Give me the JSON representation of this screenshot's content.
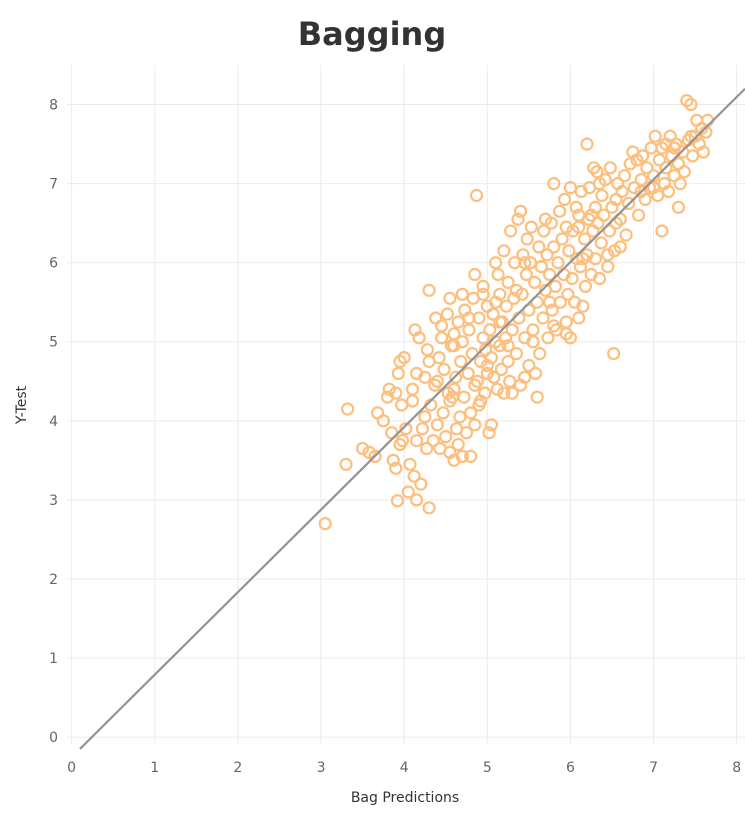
{
  "chart_data": {
    "type": "scatter",
    "title": "Bagging",
    "xlabel": "Bag Predictions",
    "ylabel": "Y-Test",
    "xlim": [
      -0.2,
      8.1
    ],
    "ylim": [
      -0.1,
      8.5
    ],
    "x_ticks": [
      "0",
      "1",
      "2",
      "3",
      "4",
      "5",
      "6",
      "7",
      "8"
    ],
    "y_ticks": [
      "0",
      "1",
      "2",
      "3",
      "4",
      "5",
      "6",
      "7",
      "8"
    ],
    "grid": true,
    "legend": "none",
    "marker_color": "#fdbf7e",
    "line_color": "#939393",
    "reference_line": {
      "x": [
        0.1,
        8.1
      ],
      "y": [
        -0.15,
        8.2
      ]
    },
    "points": [
      [
        3.05,
        2.7
      ],
      [
        3.3,
        3.45
      ],
      [
        3.32,
        4.15
      ],
      [
        3.5,
        3.65
      ],
      [
        3.58,
        3.6
      ],
      [
        3.65,
        3.55
      ],
      [
        3.68,
        4.1
      ],
      [
        3.75,
        4.0
      ],
      [
        3.8,
        4.3
      ],
      [
        3.82,
        4.4
      ],
      [
        3.85,
        3.85
      ],
      [
        3.87,
        3.5
      ],
      [
        3.9,
        3.4
      ],
      [
        3.92,
        2.99
      ],
      [
        3.93,
        4.6
      ],
      [
        3.95,
        4.75
      ],
      [
        3.97,
        4.2
      ],
      [
        3.98,
        3.75
      ],
      [
        4.0,
        4.8
      ],
      [
        4.02,
        3.9
      ],
      [
        4.05,
        3.1
      ],
      [
        4.07,
        3.45
      ],
      [
        4.1,
        4.25
      ],
      [
        4.12,
        3.3
      ],
      [
        4.13,
        5.15
      ],
      [
        4.15,
        3.0
      ],
      [
        4.15,
        4.6
      ],
      [
        4.18,
        5.05
      ],
      [
        4.2,
        3.2
      ],
      [
        4.22,
        3.9
      ],
      [
        4.25,
        4.55
      ],
      [
        4.27,
        3.65
      ],
      [
        4.28,
        4.9
      ],
      [
        4.3,
        2.9
      ],
      [
        4.3,
        5.65
      ],
      [
        4.32,
        4.2
      ],
      [
        4.35,
        3.75
      ],
      [
        4.37,
        4.45
      ],
      [
        4.38,
        5.3
      ],
      [
        4.4,
        3.95
      ],
      [
        4.42,
        4.8
      ],
      [
        4.43,
        3.65
      ],
      [
        4.45,
        5.2
      ],
      [
        4.47,
        4.1
      ],
      [
        4.48,
        4.65
      ],
      [
        4.5,
        3.8
      ],
      [
        4.52,
        5.35
      ],
      [
        4.53,
        4.35
      ],
      [
        4.55,
        3.6
      ],
      [
        4.55,
        5.55
      ],
      [
        4.57,
        4.95
      ],
      [
        4.58,
        4.3
      ],
      [
        4.6,
        3.5
      ],
      [
        4.6,
        5.1
      ],
      [
        4.62,
        4.55
      ],
      [
        4.63,
        3.9
      ],
      [
        4.65,
        5.25
      ],
      [
        4.67,
        4.05
      ],
      [
        4.68,
        4.75
      ],
      [
        4.7,
        3.55
      ],
      [
        4.7,
        5.0
      ],
      [
        4.72,
        4.3
      ],
      [
        4.73,
        5.4
      ],
      [
        4.75,
        3.85
      ],
      [
        4.77,
        4.6
      ],
      [
        4.78,
        5.15
      ],
      [
        4.8,
        3.55
      ],
      [
        4.8,
        4.1
      ],
      [
        4.82,
        4.85
      ],
      [
        4.83,
        5.55
      ],
      [
        4.85,
        3.95
      ],
      [
        4.85,
        5.85
      ],
      [
        4.87,
        6.85
      ],
      [
        4.88,
        4.5
      ],
      [
        4.9,
        5.3
      ],
      [
        4.9,
        4.2
      ],
      [
        4.92,
        4.75
      ],
      [
        4.95,
        5.05
      ],
      [
        4.95,
        5.6
      ],
      [
        4.97,
        4.35
      ],
      [
        4.98,
        4.9
      ],
      [
        5.0,
        5.45
      ],
      [
        5.0,
        4.6
      ],
      [
        5.02,
        3.85
      ],
      [
        5.03,
        5.15
      ],
      [
        5.05,
        3.95
      ],
      [
        5.05,
        4.8
      ],
      [
        5.07,
        5.35
      ],
      [
        5.08,
        4.55
      ],
      [
        5.1,
        5.0
      ],
      [
        5.1,
        5.5
      ],
      [
        5.12,
        4.4
      ],
      [
        5.13,
        5.85
      ],
      [
        5.15,
        4.95
      ],
      [
        5.15,
        5.6
      ],
      [
        5.17,
        4.65
      ],
      [
        5.18,
        5.25
      ],
      [
        5.2,
        4.35
      ],
      [
        5.2,
        6.15
      ],
      [
        5.22,
        5.05
      ],
      [
        5.23,
        5.45
      ],
      [
        5.25,
        4.75
      ],
      [
        5.25,
        5.75
      ],
      [
        5.27,
        4.5
      ],
      [
        5.28,
        6.4
      ],
      [
        5.3,
        4.35
      ],
      [
        5.3,
        5.15
      ],
      [
        5.32,
        5.55
      ],
      [
        5.33,
        6.0
      ],
      [
        5.35,
        4.85
      ],
      [
        5.37,
        6.55
      ],
      [
        5.38,
        5.3
      ],
      [
        5.4,
        4.45
      ],
      [
        5.4,
        6.65
      ],
      [
        5.42,
        5.6
      ],
      [
        5.43,
        6.1
      ],
      [
        5.45,
        5.05
      ],
      [
        5.47,
        5.85
      ],
      [
        5.48,
        6.3
      ],
      [
        5.5,
        4.7
      ],
      [
        5.5,
        5.4
      ],
      [
        5.52,
        6.0
      ],
      [
        5.53,
        6.45
      ],
      [
        5.55,
        5.15
      ],
      [
        5.57,
        5.75
      ],
      [
        5.58,
        4.6
      ],
      [
        5.6,
        4.3
      ],
      [
        5.6,
        5.5
      ],
      [
        5.62,
        6.2
      ],
      [
        5.63,
        4.85
      ],
      [
        5.65,
        5.95
      ],
      [
        5.67,
        5.3
      ],
      [
        5.68,
        6.4
      ],
      [
        5.7,
        5.65
      ],
      [
        5.72,
        6.1
      ],
      [
        5.73,
        5.05
      ],
      [
        5.75,
        5.85
      ],
      [
        5.77,
        6.5
      ],
      [
        5.78,
        5.4
      ],
      [
        5.8,
        7.0
      ],
      [
        5.8,
        6.2
      ],
      [
        5.82,
        5.7
      ],
      [
        5.83,
        5.15
      ],
      [
        5.85,
        6.0
      ],
      [
        5.87,
        6.65
      ],
      [
        5.88,
        5.5
      ],
      [
        5.9,
        6.3
      ],
      [
        5.92,
        5.85
      ],
      [
        5.93,
        6.8
      ],
      [
        5.95,
        5.1
      ],
      [
        5.95,
        6.45
      ],
      [
        5.97,
        5.6
      ],
      [
        5.98,
        6.15
      ],
      [
        6.0,
        6.95
      ],
      [
        6.02,
        5.8
      ],
      [
        6.03,
        6.4
      ],
      [
        6.05,
        5.5
      ],
      [
        6.07,
        6.7
      ],
      [
        6.08,
        6.05
      ],
      [
        6.1,
        5.3
      ],
      [
        6.1,
        6.6
      ],
      [
        6.12,
        5.95
      ],
      [
        6.13,
        6.9
      ],
      [
        6.15,
        5.45
      ],
      [
        6.17,
        6.3
      ],
      [
        6.18,
        5.7
      ],
      [
        6.2,
        7.5
      ],
      [
        6.2,
        6.1
      ],
      [
        6.22,
        6.55
      ],
      [
        6.23,
        6.95
      ],
      [
        6.25,
        5.85
      ],
      [
        6.27,
        6.4
      ],
      [
        6.28,
        7.2
      ],
      [
        6.3,
        6.7
      ],
      [
        6.3,
        6.05
      ],
      [
        6.32,
        7.15
      ],
      [
        6.33,
        6.5
      ],
      [
        6.35,
        5.8
      ],
      [
        6.37,
        6.25
      ],
      [
        6.38,
        6.85
      ],
      [
        6.4,
        6.6
      ],
      [
        6.42,
        7.05
      ],
      [
        6.45,
        5.95
      ],
      [
        6.47,
        6.4
      ],
      [
        6.48,
        7.2
      ],
      [
        6.5,
        6.7
      ],
      [
        6.52,
        4.85
      ],
      [
        6.53,
        6.15
      ],
      [
        6.55,
        6.8
      ],
      [
        6.57,
        7.0
      ],
      [
        6.6,
        6.55
      ],
      [
        6.62,
        6.9
      ],
      [
        6.65,
        7.1
      ],
      [
        6.67,
        6.35
      ],
      [
        6.7,
        6.75
      ],
      [
        6.72,
        7.25
      ],
      [
        6.75,
        7.4
      ],
      [
        6.77,
        6.95
      ],
      [
        6.8,
        7.3
      ],
      [
        6.82,
        6.6
      ],
      [
        6.85,
        7.05
      ],
      [
        6.87,
        7.35
      ],
      [
        6.9,
        6.8
      ],
      [
        6.92,
        7.2
      ],
      [
        6.95,
        6.95
      ],
      [
        6.97,
        7.45
      ],
      [
        7.0,
        7.1
      ],
      [
        7.02,
        7.6
      ],
      [
        7.05,
        6.85
      ],
      [
        7.07,
        7.3
      ],
      [
        7.1,
        6.4
      ],
      [
        7.1,
        7.45
      ],
      [
        7.13,
        7.0
      ],
      [
        7.15,
        7.2
      ],
      [
        7.18,
        6.9
      ],
      [
        7.2,
        7.6
      ],
      [
        7.22,
        7.35
      ],
      [
        7.25,
        7.1
      ],
      [
        7.27,
        7.5
      ],
      [
        7.3,
        6.7
      ],
      [
        7.3,
        7.25
      ],
      [
        7.32,
        7.0
      ],
      [
        7.35,
        7.4
      ],
      [
        7.37,
        7.15
      ],
      [
        7.4,
        8.05
      ],
      [
        7.42,
        7.55
      ],
      [
        7.45,
        8.0
      ],
      [
        7.47,
        7.35
      ],
      [
        7.5,
        7.6
      ],
      [
        7.52,
        7.8
      ],
      [
        7.55,
        7.5
      ],
      [
        7.58,
        7.7
      ],
      [
        7.6,
        7.4
      ],
      [
        7.63,
        7.65
      ],
      [
        7.65,
        7.8
      ],
      [
        4.6,
        4.95
      ],
      [
        4.4,
        4.5
      ],
      [
        4.25,
        4.05
      ],
      [
        4.95,
        5.7
      ],
      [
        5.55,
        5.0
      ],
      [
        5.8,
        5.2
      ],
      [
        6.0,
        5.05
      ],
      [
        5.45,
        6.0
      ],
      [
        6.6,
        6.2
      ],
      [
        4.7,
        5.6
      ],
      [
        4.55,
        4.25
      ],
      [
        4.85,
        4.45
      ],
      [
        5.15,
        5.25
      ],
      [
        3.95,
        3.7
      ],
      [
        4.15,
        3.75
      ],
      [
        4.65,
        3.7
      ],
      [
        5.0,
        4.7
      ],
      [
        5.35,
        5.65
      ],
      [
        5.65,
        5.95
      ],
      [
        6.25,
        6.6
      ],
      [
        6.45,
        6.1
      ],
      [
        5.95,
        5.25
      ],
      [
        4.1,
        4.4
      ],
      [
        4.45,
        5.05
      ],
      [
        4.78,
        5.3
      ],
      [
        5.25,
        4.95
      ],
      [
        5.7,
        6.55
      ],
      [
        6.1,
        6.45
      ],
      [
        6.35,
        7.0
      ],
      [
        7.15,
        7.5
      ],
      [
        7.0,
        6.95
      ],
      [
        3.9,
        4.35
      ],
      [
        4.3,
        4.75
      ],
      [
        4.6,
        4.4
      ],
      [
        4.92,
        4.25
      ],
      [
        5.45,
        4.55
      ],
      [
        5.1,
        6.0
      ],
      [
        5.75,
        5.5
      ],
      [
        6.15,
        6.05
      ],
      [
        6.55,
        6.5
      ],
      [
        6.85,
        6.9
      ],
      [
        7.25,
        7.45
      ],
      [
        7.45,
        7.6
      ]
    ]
  }
}
